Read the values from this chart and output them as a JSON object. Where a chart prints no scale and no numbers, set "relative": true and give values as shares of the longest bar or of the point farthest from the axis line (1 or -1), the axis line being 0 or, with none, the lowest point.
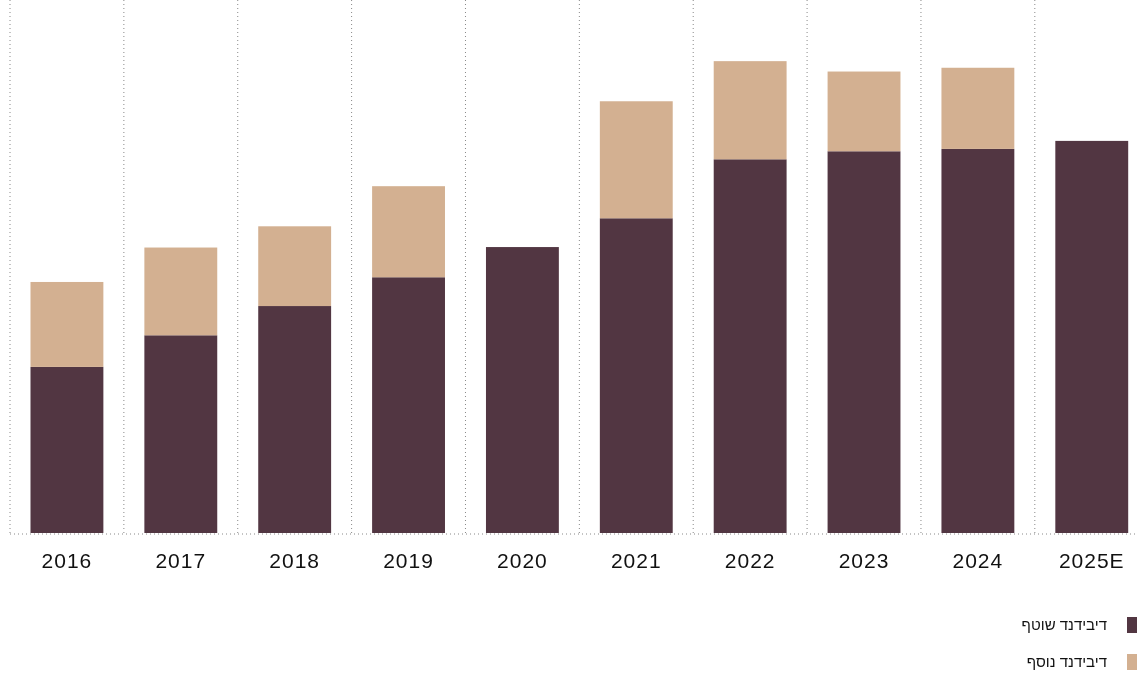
{
  "chart_data": {
    "type": "bar",
    "stacked": true,
    "relative": true,
    "grid": "x",
    "legend": "bottom right",
    "categories": [
      "2016",
      "2017",
      "2018",
      "2019",
      "2020",
      "2021",
      "2022",
      "2023",
      "2024",
      "2025E"
    ],
    "series": [
      {
        "name": "דיבידנד שוטף",
        "color": "#523642",
        "values": [
          0.352,
          0.419,
          0.481,
          0.542,
          0.606,
          0.667,
          0.792,
          0.809,
          0.814,
          0.831
        ]
      },
      {
        "name": "דיבידנד נוסף",
        "color": "#d3b091",
        "values": [
          0.18,
          0.186,
          0.169,
          0.193,
          null,
          0.248,
          0.208,
          0.169,
          0.172,
          null
        ]
      }
    ]
  }
}
